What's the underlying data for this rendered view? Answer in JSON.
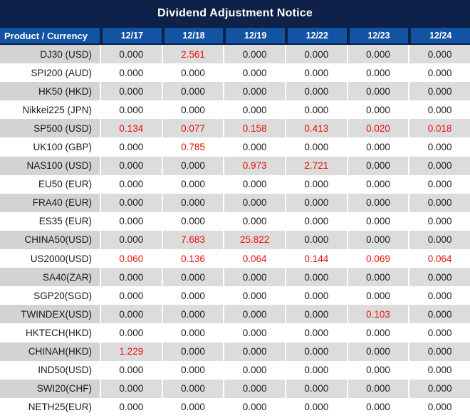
{
  "title": "Dividend Adjustment Notice",
  "colors": {
    "title_bar_navy": "#0d2149",
    "header_blue": "#1253a4",
    "row_gray": "#dcdcdc",
    "label_gray": "#d3d3d3",
    "row_white": "#ffffff",
    "value_black": "#1c1c1c",
    "value_red": "#e8120d",
    "header_text": "#ffffff"
  },
  "table": {
    "header": {
      "product": "Product / Currency",
      "dates": [
        "12/17",
        "12/18",
        "12/19",
        "12/22",
        "12/23",
        "12/24"
      ]
    },
    "zero_value": "0.000",
    "rows": [
      {
        "product": "DJ30 (USD)",
        "values": [
          "0.000",
          "2.561",
          "0.000",
          "0.000",
          "0.000",
          "0.000"
        ]
      },
      {
        "product": "SPI200 (AUD)",
        "values": [
          "0.000",
          "0.000",
          "0.000",
          "0.000",
          "0.000",
          "0.000"
        ]
      },
      {
        "product": "HK50 (HKD)",
        "values": [
          "0.000",
          "0.000",
          "0.000",
          "0.000",
          "0.000",
          "0.000"
        ]
      },
      {
        "product": "Nikkei225 (JPN)",
        "values": [
          "0.000",
          "0.000",
          "0.000",
          "0.000",
          "0.000",
          "0.000"
        ]
      },
      {
        "product": "SP500 (USD)",
        "values": [
          "0.134",
          "0.077",
          "0.158",
          "0.413",
          "0.020",
          "0.018"
        ]
      },
      {
        "product": "UK100 (GBP)",
        "values": [
          "0.000",
          "0.785",
          "0.000",
          "0.000",
          "0.000",
          "0.000"
        ]
      },
      {
        "product": "NAS100 (USD)",
        "values": [
          "0.000",
          "0.000",
          "0.973",
          "2.721",
          "0.000",
          "0.000"
        ]
      },
      {
        "product": "EU50 (EUR)",
        "values": [
          "0.000",
          "0.000",
          "0.000",
          "0.000",
          "0.000",
          "0.000"
        ]
      },
      {
        "product": "FRA40 (EUR)",
        "values": [
          "0.000",
          "0.000",
          "0.000",
          "0.000",
          "0.000",
          "0.000"
        ]
      },
      {
        "product": "ES35 (EUR)",
        "values": [
          "0.000",
          "0.000",
          "0.000",
          "0.000",
          "0.000",
          "0.000"
        ]
      },
      {
        "product": "CHINA50(USD)",
        "values": [
          "0.000",
          "7.683",
          "25.822",
          "0.000",
          "0.000",
          "0.000"
        ]
      },
      {
        "product": "US2000(USD)",
        "values": [
          "0.060",
          "0.136",
          "0.064",
          "0.144",
          "0.069",
          "0.064"
        ]
      },
      {
        "product": "SA40(ZAR)",
        "values": [
          "0.000",
          "0.000",
          "0.000",
          "0.000",
          "0.000",
          "0.000"
        ]
      },
      {
        "product": "SGP20(SGD)",
        "values": [
          "0.000",
          "0.000",
          "0.000",
          "0.000",
          "0.000",
          "0.000"
        ]
      },
      {
        "product": "TWINDEX(USD)",
        "values": [
          "0.000",
          "0.000",
          "0.000",
          "0.000",
          "0.103",
          "0.000"
        ]
      },
      {
        "product": "HKTECH(HKD)",
        "values": [
          "0.000",
          "0.000",
          "0.000",
          "0.000",
          "0.000",
          "0.000"
        ]
      },
      {
        "product": "CHINAH(HKD)",
        "values": [
          "1.229",
          "0.000",
          "0.000",
          "0.000",
          "0.000",
          "0.000"
        ]
      },
      {
        "product": "IND50(USD)",
        "values": [
          "0.000",
          "0.000",
          "0.000",
          "0.000",
          "0.000",
          "0.000"
        ]
      },
      {
        "product": "SWI20(CHF)",
        "values": [
          "0.000",
          "0.000",
          "0.000",
          "0.000",
          "0.000",
          "0.000"
        ]
      },
      {
        "product": "NETH25(EUR)",
        "values": [
          "0.000",
          "0.000",
          "0.000",
          "0.000",
          "0.000",
          "0.000"
        ]
      }
    ]
  }
}
